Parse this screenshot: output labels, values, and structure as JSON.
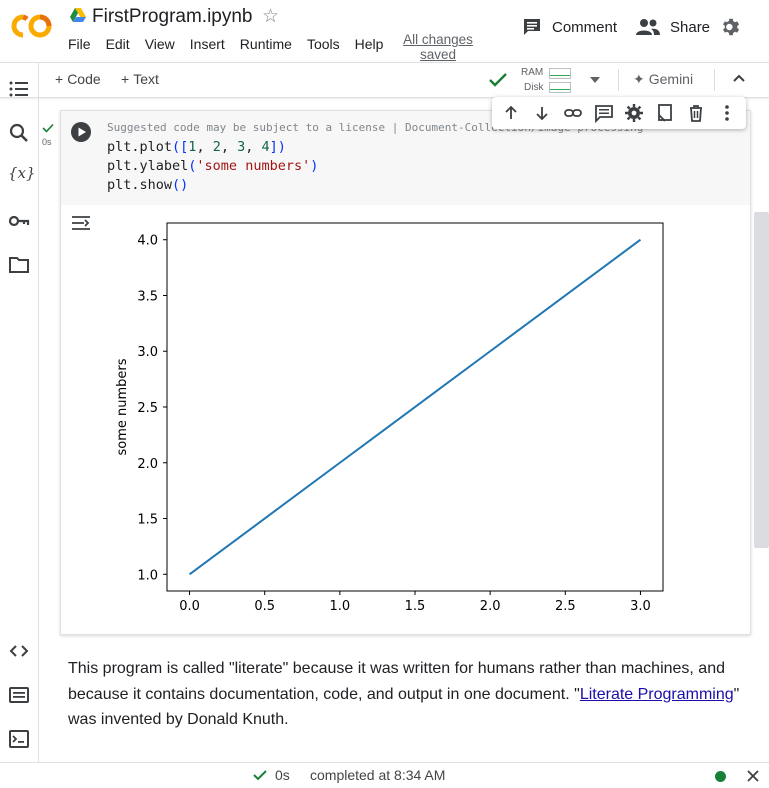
{
  "app": {
    "filename": "FirstProgram.ipynb",
    "save_status_line1": "All changes",
    "save_status_line2": "saved"
  },
  "menu": [
    "File",
    "Edit",
    "View",
    "Insert",
    "Runtime",
    "Tools",
    "Help"
  ],
  "header": {
    "comment_label": "Comment",
    "share_label": "Share"
  },
  "toolbar": {
    "add_code_label": "Code",
    "add_text_label": "Text",
    "ram_label": "RAM",
    "disk_label": "Disk",
    "gemini_label": "Gemini"
  },
  "sidebar": [
    "table-of-contents-icon",
    "search-icon",
    "variables-icon",
    "secrets-key-icon",
    "files-folder-icon",
    "code-snippets-icon",
    "command-palette-icon",
    "terminal-icon"
  ],
  "cell": {
    "exec_time": "0s",
    "license_notice": "Suggested code may be subject to a license | Document-Collection/image-processing",
    "code_lines": [
      "plt.plot([1, 2, 3, 4])",
      "plt.ylabel('some numbers')",
      "plt.show()"
    ]
  },
  "chart_data": {
    "type": "line",
    "x": [
      0,
      1,
      2,
      3
    ],
    "series": [
      {
        "values": [
          1,
          2,
          3,
          4
        ]
      }
    ],
    "xticks": [
      "0.0",
      "0.5",
      "1.0",
      "1.5",
      "2.0",
      "2.5",
      "3.0"
    ],
    "yticks": [
      "1.0",
      "1.5",
      "2.0",
      "2.5",
      "3.0",
      "3.5",
      "4.0"
    ],
    "xlim": [
      -0.15,
      3.15
    ],
    "ylim": [
      0.85,
      4.15
    ],
    "xlabel": "",
    "ylabel": "some numbers",
    "line_color": "#1f77b4",
    "grid": false
  },
  "text_cell": {
    "before_link": "This program is called \"literate\" because it was written for humans rather than machines, and because it contains documentation, code, and output in one document. \"",
    "link_text": "Literate Programming",
    "after_link": "\" was invented by Donald Knuth."
  },
  "status": {
    "time": "0s",
    "completed": "completed at 8:34 AM",
    "connected_color": "#188038"
  },
  "colors": {
    "accent_orange": "#f9ab00",
    "check_green": "#188038"
  }
}
